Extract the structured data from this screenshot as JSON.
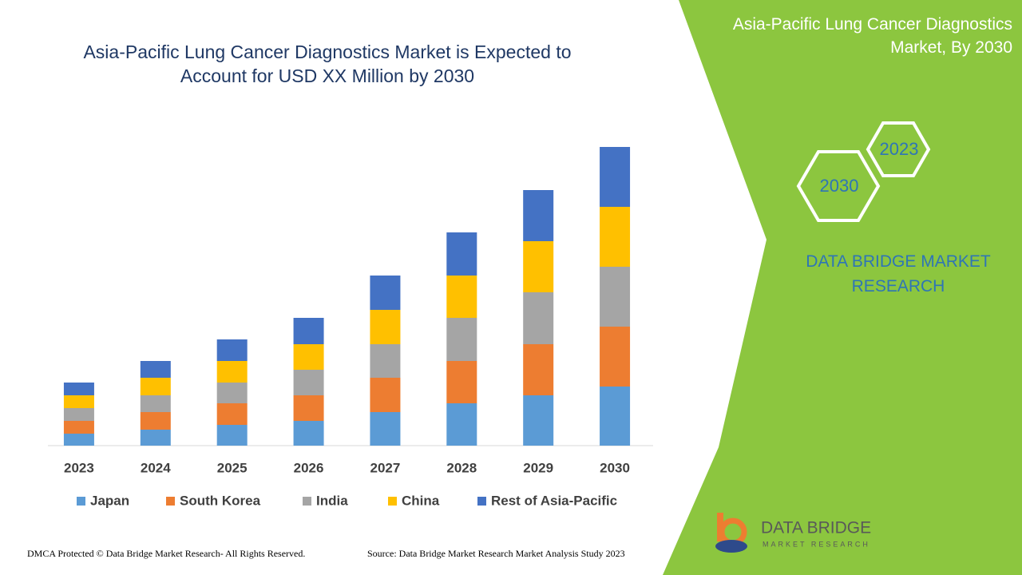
{
  "chart_data": {
    "type": "stacked-bar",
    "title": "Asia-Pacific Lung Cancer Diagnostics Market is Expected to Account for USD XX Million by 2030",
    "categories": [
      "2023",
      "2024",
      "2025",
      "2026",
      "2027",
      "2028",
      "2029",
      "2030"
    ],
    "series": [
      {
        "name": "Japan",
        "color": "#5b9bd5",
        "values": [
          15,
          20,
          26,
          31,
          42,
          53,
          63,
          74
        ]
      },
      {
        "name": "South Korea",
        "color": "#ed7d31",
        "values": [
          16,
          22,
          27,
          32,
          43,
          53,
          64,
          75
        ]
      },
      {
        "name": "India",
        "color": "#a5a5a5",
        "values": [
          16,
          21,
          26,
          32,
          42,
          54,
          65,
          75
        ]
      },
      {
        "name": "China",
        "color": "#ffc000",
        "values": [
          16,
          22,
          27,
          32,
          43,
          53,
          64,
          75
        ]
      },
      {
        "name": "Rest of Asia-Pacific",
        "color": "#4472c4",
        "values": [
          16,
          21,
          27,
          33,
          43,
          54,
          64,
          75
        ]
      }
    ],
    "ylim": [
      0,
      400
    ]
  },
  "panel": {
    "title": "Asia-Pacific Lung Cancer Diagnostics Market, By 2030",
    "hexagons": [
      "2023",
      "2030"
    ],
    "brand": "DATA BRIDGE MARKET RESEARCH"
  },
  "logo": {
    "name": "DATA BRIDGE",
    "tagline": "MARKET RESEARCH"
  },
  "footer": {
    "left": "DMCA Protected © Data Bridge Market Research- All Rights Reserved.",
    "right": "Source: Data Bridge Market Research Market Analysis Study 2023"
  }
}
